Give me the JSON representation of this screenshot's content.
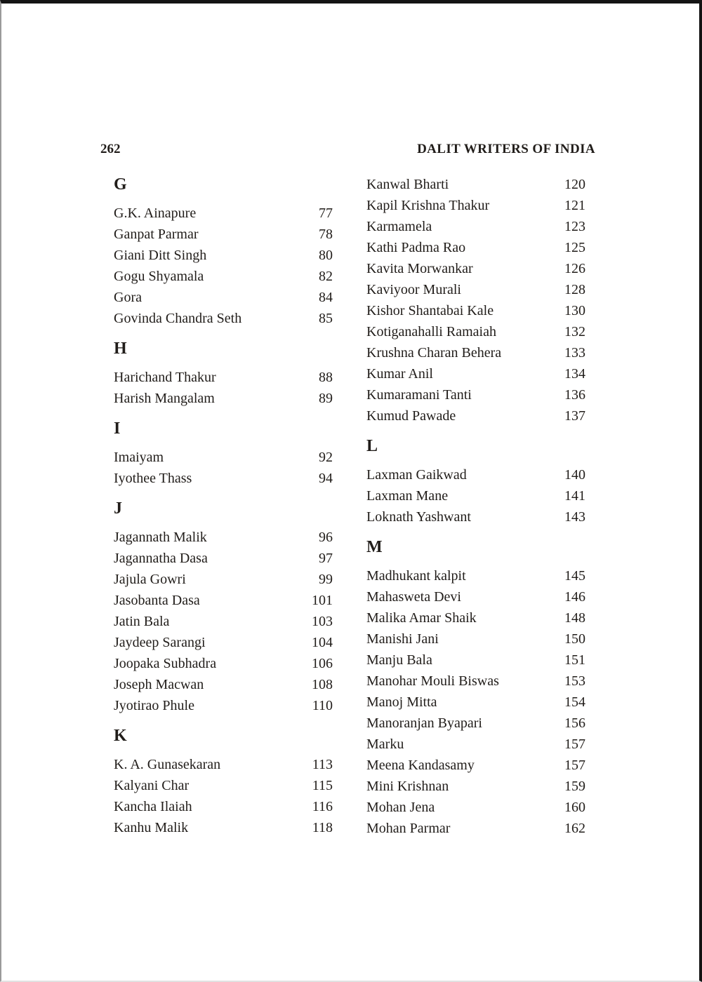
{
  "page": {
    "folio": "262",
    "running_title": "DALIT WRITERS OF INDIA"
  },
  "colors": {
    "ink": "#211d1a",
    "paper": "#ffffff",
    "frame_dark": "#141414"
  },
  "columns": {
    "left": [
      {
        "heading": "G",
        "entries": [
          {
            "name": "G.K. Ainapure",
            "page": "77"
          },
          {
            "name": "Ganpat Parmar",
            "page": "78"
          },
          {
            "name": "Giani Ditt Singh",
            "page": "80"
          },
          {
            "name": "Gogu Shyamala",
            "page": "82"
          },
          {
            "name": "Gora",
            "page": "84"
          },
          {
            "name": "Govinda Chandra Seth",
            "page": "85"
          }
        ]
      },
      {
        "heading": "H",
        "entries": [
          {
            "name": "Harichand Thakur",
            "page": "88"
          },
          {
            "name": "Harish Mangalam",
            "page": "89"
          }
        ]
      },
      {
        "heading": "I",
        "entries": [
          {
            "name": "Imaiyam",
            "page": "92"
          },
          {
            "name": "Iyothee Thass",
            "page": "94"
          }
        ]
      },
      {
        "heading": "J",
        "entries": [
          {
            "name": "Jagannath Malik",
            "page": "96"
          },
          {
            "name": "Jagannatha Dasa",
            "page": "97"
          },
          {
            "name": "Jajula Gowri",
            "page": "99"
          },
          {
            "name": "Jasobanta Dasa",
            "page": "101"
          },
          {
            "name": "Jatin Bala",
            "page": "103"
          },
          {
            "name": "Jaydeep Sarangi",
            "page": "104"
          },
          {
            "name": "Joopaka Subhadra",
            "page": "106"
          },
          {
            "name": "Joseph Macwan",
            "page": "108"
          },
          {
            "name": "Jyotirao Phule",
            "page": "110"
          }
        ]
      },
      {
        "heading": "K",
        "entries": [
          {
            "name": "K. A. Gunasekaran",
            "page": "113"
          },
          {
            "name": "Kalyani Char",
            "page": "115"
          },
          {
            "name": "Kancha Ilaiah",
            "page": "116"
          },
          {
            "name": "Kanhu Malik",
            "page": "118"
          }
        ]
      }
    ],
    "right": [
      {
        "heading": "",
        "entries": [
          {
            "name": "Kanwal Bharti",
            "page": "120"
          },
          {
            "name": "Kapil Krishna Thakur",
            "page": "121"
          },
          {
            "name": "Karmamela",
            "page": "123"
          },
          {
            "name": "Kathi Padma Rao",
            "page": "125"
          },
          {
            "name": "Kavita Morwankar",
            "page": "126"
          },
          {
            "name": "Kaviyoor Murali",
            "page": "128"
          },
          {
            "name": "Kishor Shantabai Kale",
            "page": "130"
          },
          {
            "name": "Kotiganahalli Ramaiah",
            "page": "132"
          },
          {
            "name": "Krushna Charan Behera",
            "page": "133"
          },
          {
            "name": "Kumar Anil",
            "page": "134"
          },
          {
            "name": "Kumaramani Tanti",
            "page": "136"
          },
          {
            "name": "Kumud Pawade",
            "page": "137"
          }
        ]
      },
      {
        "heading": "L",
        "entries": [
          {
            "name": "Laxman Gaikwad",
            "page": "140"
          },
          {
            "name": "Laxman Mane",
            "page": "141"
          },
          {
            "name": "Loknath Yashwant",
            "page": "143"
          }
        ]
      },
      {
        "heading": "M",
        "entries": [
          {
            "name": "Madhukant kalpit",
            "page": "145"
          },
          {
            "name": "Mahasweta Devi",
            "page": "146"
          },
          {
            "name": "Malika Amar Shaik",
            "page": "148"
          },
          {
            "name": "Manishi Jani",
            "page": "150"
          },
          {
            "name": "Manju Bala",
            "page": "151"
          },
          {
            "name": "Manohar Mouli Biswas",
            "page": "153"
          },
          {
            "name": "Manoj Mitta",
            "page": "154"
          },
          {
            "name": "Manoranjan Byapari",
            "page": "156"
          },
          {
            "name": "Marku",
            "page": "157"
          },
          {
            "name": "Meena Kandasamy",
            "page": "157"
          },
          {
            "name": "Mini Krishnan",
            "page": "159"
          },
          {
            "name": "Mohan Jena",
            "page": "160"
          },
          {
            "name": "Mohan Parmar",
            "page": "162"
          }
        ]
      }
    ]
  }
}
